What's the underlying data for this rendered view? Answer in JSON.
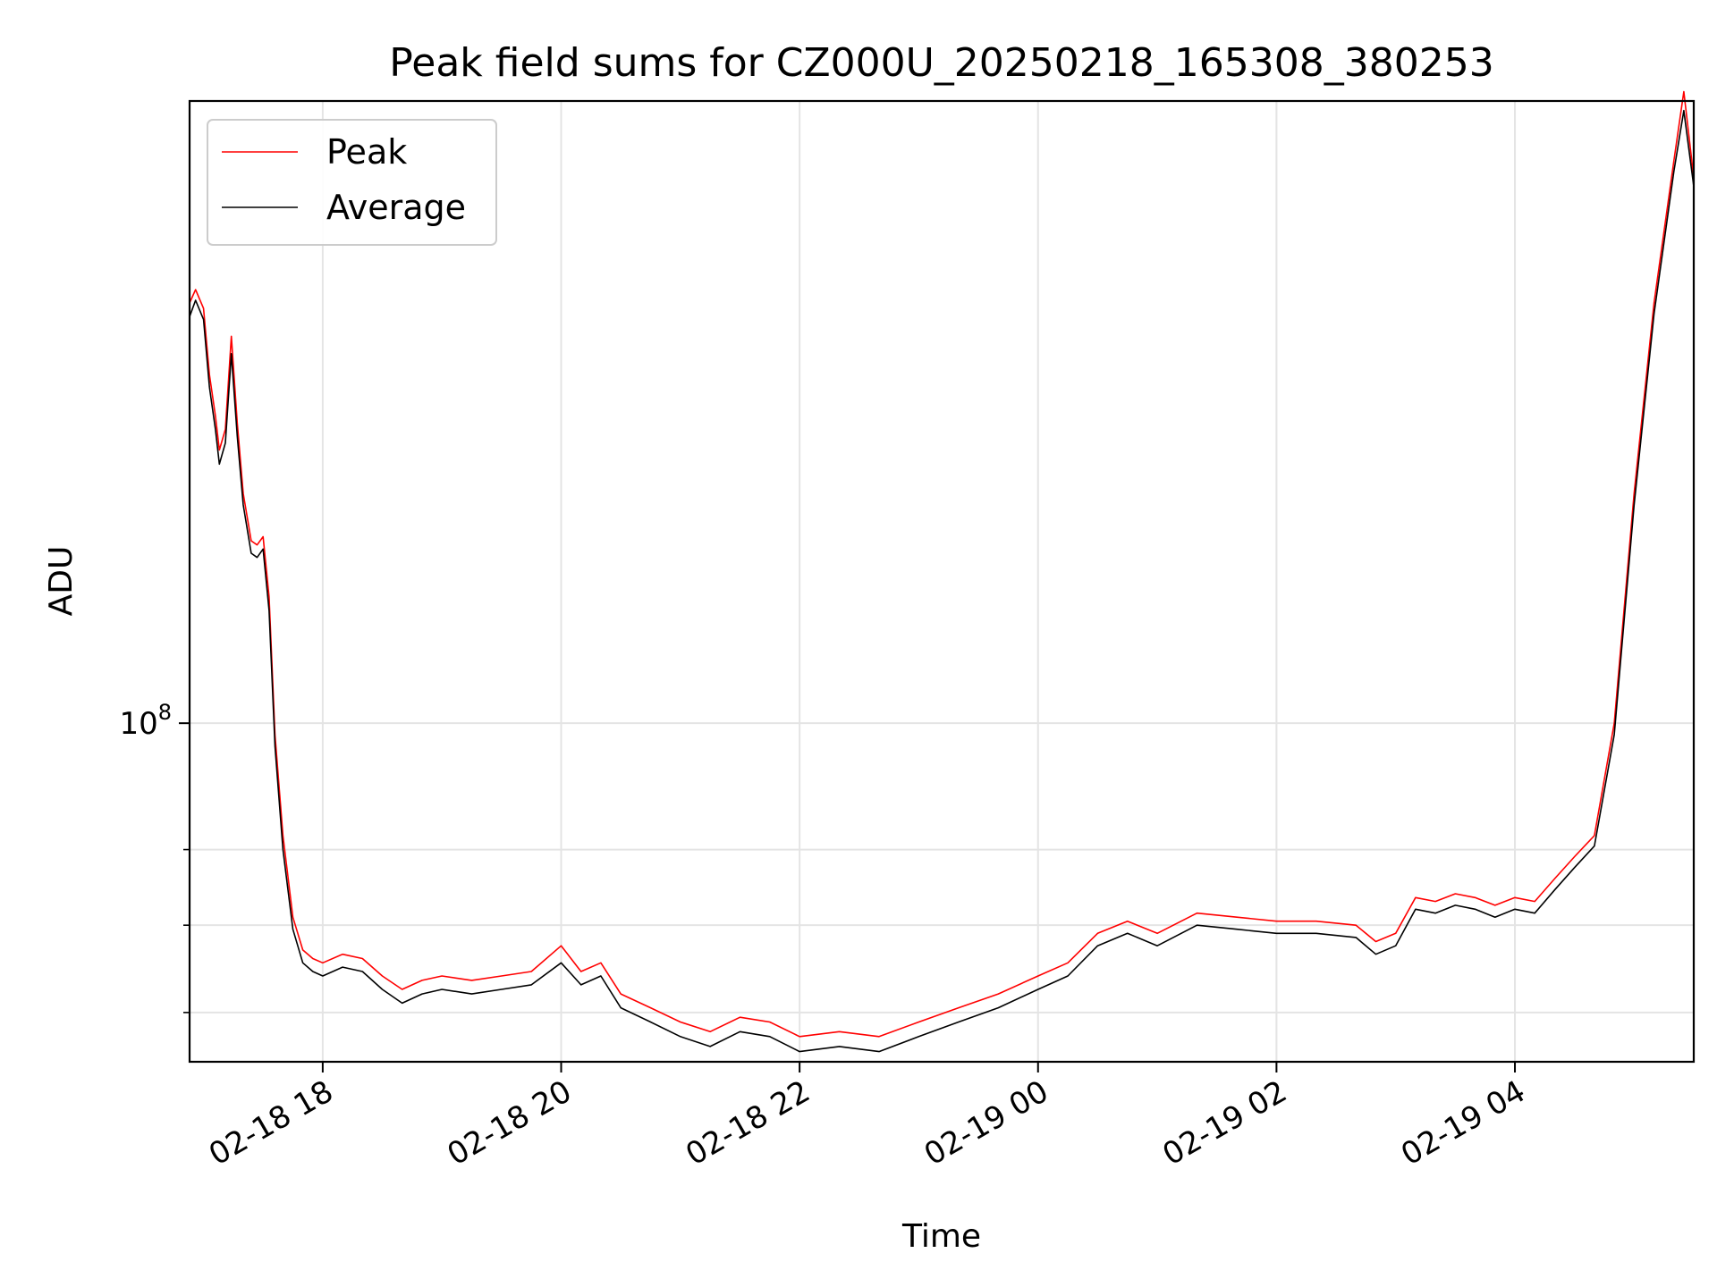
{
  "chart_data": {
    "type": "line",
    "title": "Peak field sums for CZ000U_20250218_165308_380253",
    "xlabel": "Time",
    "ylabel": "ADU",
    "yscale": "log",
    "grid": true,
    "legend_position": "top-left",
    "x_tick_labels": [
      "02-18 18",
      "02-18 20",
      "02-18 22",
      "02-19 00",
      "02-19 02",
      "02-19 04"
    ],
    "x_tick_times": [
      "2025-02-18 18:00",
      "2025-02-18 20:00",
      "2025-02-18 22:00",
      "2025-02-19 00:00",
      "2025-02-19 02:00",
      "2025-02-19 04:00"
    ],
    "y_tick_labels": [
      {
        "base": "10",
        "exp": "8",
        "value": 100000000
      }
    ],
    "y_minor_ticks": [
      60000000,
      70000000,
      80000000
    ],
    "xlim": [
      "2025-02-18 16:53",
      "2025-02-19 05:30"
    ],
    "ylim": [
      55000000,
      300000000
    ],
    "series": [
      {
        "name": "Peak",
        "color": "#ff0000",
        "x": [
          "2025-02-18 16:53",
          "2025-02-18 16:56",
          "2025-02-18 17:00",
          "2025-02-18 17:03",
          "2025-02-18 17:06",
          "2025-02-18 17:08",
          "2025-02-18 17:11",
          "2025-02-18 17:14",
          "2025-02-18 17:17",
          "2025-02-18 17:20",
          "2025-02-18 17:24",
          "2025-02-18 17:27",
          "2025-02-18 17:30",
          "2025-02-18 17:33",
          "2025-02-18 17:36",
          "2025-02-18 17:40",
          "2025-02-18 17:45",
          "2025-02-18 17:50",
          "2025-02-18 17:55",
          "2025-02-18 18:00",
          "2025-02-18 18:10",
          "2025-02-18 18:20",
          "2025-02-18 18:30",
          "2025-02-18 18:40",
          "2025-02-18 18:50",
          "2025-02-18 19:00",
          "2025-02-18 19:15",
          "2025-02-18 19:30",
          "2025-02-18 19:45",
          "2025-02-18 20:00",
          "2025-02-18 20:10",
          "2025-02-18 20:20",
          "2025-02-18 20:30",
          "2025-02-18 20:45",
          "2025-02-18 21:00",
          "2025-02-18 21:15",
          "2025-02-18 21:30",
          "2025-02-18 21:45",
          "2025-02-18 22:00",
          "2025-02-18 22:20",
          "2025-02-18 22:40",
          "2025-02-18 23:00",
          "2025-02-18 23:20",
          "2025-02-18 23:40",
          "2025-02-19 00:00",
          "2025-02-19 00:15",
          "2025-02-19 00:30",
          "2025-02-19 00:45",
          "2025-02-19 01:00",
          "2025-02-19 01:20",
          "2025-02-19 01:40",
          "2025-02-19 02:00",
          "2025-02-19 02:20",
          "2025-02-19 02:40",
          "2025-02-19 02:50",
          "2025-02-19 03:00",
          "2025-02-19 03:10",
          "2025-02-19 03:20",
          "2025-02-19 03:30",
          "2025-02-19 03:40",
          "2025-02-19 03:50",
          "2025-02-19 04:00",
          "2025-02-19 04:10",
          "2025-02-19 04:20",
          "2025-02-19 04:30",
          "2025-02-19 04:40",
          "2025-02-19 04:50",
          "2025-02-19 05:00",
          "2025-02-19 05:10",
          "2025-02-19 05:20",
          "2025-02-19 05:25",
          "2025-02-19 05:30"
        ],
        "values": [
          210000000,
          215000000,
          208000000,
          185000000,
          172000000,
          162000000,
          168000000,
          198000000,
          170000000,
          150000000,
          138000000,
          137000000,
          139000000,
          125000000,
          98000000,
          82000000,
          71000000,
          67000000,
          66000000,
          65500000,
          66500000,
          66000000,
          64000000,
          62500000,
          63500000,
          64000000,
          63500000,
          64000000,
          64500000,
          67500000,
          64500000,
          65500000,
          62000000,
          60500000,
          59000000,
          58000000,
          59500000,
          59000000,
          57500000,
          58000000,
          57500000,
          59000000,
          60500000,
          62000000,
          64000000,
          65500000,
          69000000,
          70500000,
          69000000,
          71500000,
          71000000,
          70500000,
          70500000,
          70000000,
          68000000,
          69000000,
          73500000,
          73000000,
          74000000,
          73500000,
          72500000,
          73500000,
          73000000,
          76000000,
          79000000,
          82000000,
          100000000,
          150000000,
          210000000,
          270000000,
          305000000,
          262000000
        ]
      },
      {
        "name": "Average",
        "color": "#000000",
        "x": [
          "2025-02-18 16:53",
          "2025-02-18 16:56",
          "2025-02-18 17:00",
          "2025-02-18 17:03",
          "2025-02-18 17:06",
          "2025-02-18 17:08",
          "2025-02-18 17:11",
          "2025-02-18 17:14",
          "2025-02-18 17:17",
          "2025-02-18 17:20",
          "2025-02-18 17:24",
          "2025-02-18 17:27",
          "2025-02-18 17:30",
          "2025-02-18 17:33",
          "2025-02-18 17:36",
          "2025-02-18 17:40",
          "2025-02-18 17:45",
          "2025-02-18 17:50",
          "2025-02-18 17:55",
          "2025-02-18 18:00",
          "2025-02-18 18:10",
          "2025-02-18 18:20",
          "2025-02-18 18:30",
          "2025-02-18 18:40",
          "2025-02-18 18:50",
          "2025-02-18 19:00",
          "2025-02-18 19:15",
          "2025-02-18 19:30",
          "2025-02-18 19:45",
          "2025-02-18 20:00",
          "2025-02-18 20:10",
          "2025-02-18 20:20",
          "2025-02-18 20:30",
          "2025-02-18 20:45",
          "2025-02-18 21:00",
          "2025-02-18 21:15",
          "2025-02-18 21:30",
          "2025-02-18 21:45",
          "2025-02-18 22:00",
          "2025-02-18 22:20",
          "2025-02-18 22:40",
          "2025-02-18 23:00",
          "2025-02-18 23:20",
          "2025-02-18 23:40",
          "2025-02-19 00:00",
          "2025-02-19 00:15",
          "2025-02-19 00:30",
          "2025-02-19 00:45",
          "2025-02-19 01:00",
          "2025-02-19 01:20",
          "2025-02-19 01:40",
          "2025-02-19 02:00",
          "2025-02-19 02:20",
          "2025-02-19 02:40",
          "2025-02-19 02:50",
          "2025-02-19 03:00",
          "2025-02-19 03:10",
          "2025-02-19 03:20",
          "2025-02-19 03:30",
          "2025-02-19 03:40",
          "2025-02-19 03:50",
          "2025-02-19 04:00",
          "2025-02-19 04:10",
          "2025-02-19 04:20",
          "2025-02-19 04:30",
          "2025-02-19 04:40",
          "2025-02-19 04:50",
          "2025-02-19 05:00",
          "2025-02-19 05:10",
          "2025-02-19 05:20",
          "2025-02-19 05:25",
          "2025-02-19 05:30"
        ],
        "values": [
          205000000,
          211000000,
          204000000,
          181000000,
          168000000,
          158000000,
          164000000,
          192000000,
          166000000,
          147000000,
          135000000,
          134000000,
          136000000,
          122000000,
          96000000,
          80000000,
          69500000,
          65500000,
          64500000,
          64000000,
          65000000,
          64500000,
          62500000,
          61000000,
          62000000,
          62500000,
          62000000,
          62500000,
          63000000,
          65500000,
          63000000,
          64000000,
          60500000,
          59000000,
          57500000,
          56500000,
          58000000,
          57500000,
          56000000,
          56500000,
          56000000,
          57500000,
          59000000,
          60500000,
          62500000,
          64000000,
          67500000,
          69000000,
          67500000,
          70000000,
          69500000,
          69000000,
          69000000,
          68500000,
          66500000,
          67500000,
          72000000,
          71500000,
          72500000,
          72000000,
          71000000,
          72000000,
          71500000,
          74500000,
          77500000,
          80500000,
          98000000,
          147000000,
          206000000,
          265000000,
          295000000,
          258000000
        ]
      }
    ]
  }
}
